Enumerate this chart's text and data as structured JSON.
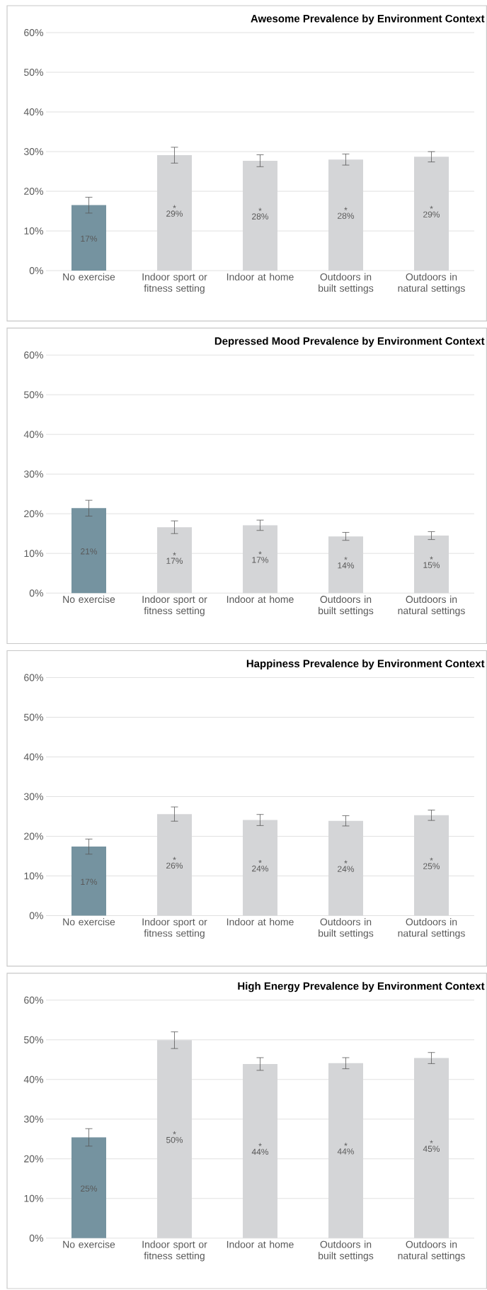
{
  "chart_data": [
    {
      "type": "bar",
      "title": "Awesome Prevalence by Environment Context",
      "categories": [
        "No exercise",
        "Indoor sport or fitness setting",
        "Indoor at home",
        "Outdoors in built settings",
        "Outdoors in natural settings"
      ],
      "values": [
        16.5,
        29.1,
        27.7,
        28.0,
        28.7
      ],
      "errors": [
        2.0,
        2.0,
        1.5,
        1.4,
        1.3
      ],
      "colors": [
        "#7593a0",
        "#d4d5d7",
        "#d4d5d7",
        "#d4d5d7",
        "#d4d5d7"
      ],
      "value_labels": [
        "17%",
        "29%",
        "28%",
        "28%",
        "29%"
      ],
      "annotations": [
        "*",
        "*",
        "*",
        "*"
      ],
      "ylim": [
        0,
        60
      ],
      "yticks": [
        {
          "value": 0,
          "label": "0%"
        },
        {
          "value": 10,
          "label": "10%"
        },
        {
          "value": 20,
          "label": "20%"
        },
        {
          "value": 30,
          "label": "30%"
        },
        {
          "value": 40,
          "label": "40%"
        },
        {
          "value": 50,
          "label": "50%"
        },
        {
          "value": 60,
          "label": "60%"
        }
      ],
      "grid": "y"
    },
    {
      "type": "bar",
      "title": "Depressed Mood Prevalence by Environment Context",
      "categories": [
        "No exercise",
        "Indoor sport or fitness setting",
        "Indoor at home",
        "Outdoors in built settings",
        "Outdoors in natural settings"
      ],
      "values": [
        21.4,
        16.6,
        17.1,
        14.3,
        14.5
      ],
      "errors": [
        2.0,
        1.6,
        1.3,
        1.0,
        1.0
      ],
      "colors": [
        "#7593a0",
        "#d4d5d7",
        "#d4d5d7",
        "#d4d5d7",
        "#d4d5d7"
      ],
      "value_labels": [
        "21%",
        "17%",
        "17%",
        "14%",
        "15%"
      ],
      "annotations": [
        "*",
        "*",
        "*",
        "*"
      ],
      "ylim": [
        0,
        60
      ],
      "yticks": [
        {
          "value": 0,
          "label": "0%"
        },
        {
          "value": 10,
          "label": "10%"
        },
        {
          "value": 20,
          "label": "20%"
        },
        {
          "value": 30,
          "label": "30%"
        },
        {
          "value": 40,
          "label": "40%"
        },
        {
          "value": 50,
          "label": "50%"
        },
        {
          "value": 60,
          "label": "60%"
        }
      ],
      "grid": "y"
    },
    {
      "type": "bar",
      "title": "Happiness Prevalence by Environment Context",
      "categories": [
        "No exercise",
        "Indoor sport or fitness setting",
        "Indoor at home",
        "Outdoors in built settings",
        "Outdoors in natural settings"
      ],
      "values": [
        17.4,
        25.6,
        24.1,
        23.9,
        25.3
      ],
      "errors": [
        1.9,
        1.8,
        1.4,
        1.3,
        1.3
      ],
      "colors": [
        "#7593a0",
        "#d4d5d7",
        "#d4d5d7",
        "#d4d5d7",
        "#d4d5d7"
      ],
      "value_labels": [
        "17%",
        "26%",
        "24%",
        "24%",
        "25%"
      ],
      "annotations": [
        "*",
        "*",
        "*",
        "*"
      ],
      "ylim": [
        0,
        60
      ],
      "yticks": [
        {
          "value": 0,
          "label": "0%"
        },
        {
          "value": 10,
          "label": "10%"
        },
        {
          "value": 20,
          "label": "20%"
        },
        {
          "value": 30,
          "label": "30%"
        },
        {
          "value": 40,
          "label": "40%"
        },
        {
          "value": 50,
          "label": "50%"
        },
        {
          "value": 60,
          "label": "60%"
        }
      ],
      "grid": "y"
    },
    {
      "type": "bar",
      "title": "High Energy Prevalence by Environment Context",
      "categories": [
        "No exercise",
        "Indoor sport or fitness setting",
        "Indoor at home",
        "Outdoors in built settings",
        "Outdoors in natural settings"
      ],
      "values": [
        25.4,
        49.9,
        43.9,
        44.1,
        45.4
      ],
      "errors": [
        2.2,
        2.1,
        1.6,
        1.4,
        1.4
      ],
      "colors": [
        "#7593a0",
        "#d4d5d7",
        "#d4d5d7",
        "#d4d5d7",
        "#d4d5d7"
      ],
      "value_labels": [
        "25%",
        "50%",
        "44%",
        "44%",
        "45%"
      ],
      "annotations": [
        "*",
        "*",
        "*",
        "*"
      ],
      "ylim": [
        0,
        60
      ],
      "yticks": [
        {
          "value": 0,
          "label": "0%"
        },
        {
          "value": 10,
          "label": "10%"
        },
        {
          "value": 20,
          "label": "20%"
        },
        {
          "value": 30,
          "label": "30%"
        },
        {
          "value": 40,
          "label": "40%"
        },
        {
          "value": 50,
          "label": "50%"
        },
        {
          "value": 60,
          "label": "60%"
        }
      ],
      "grid": "y"
    }
  ]
}
